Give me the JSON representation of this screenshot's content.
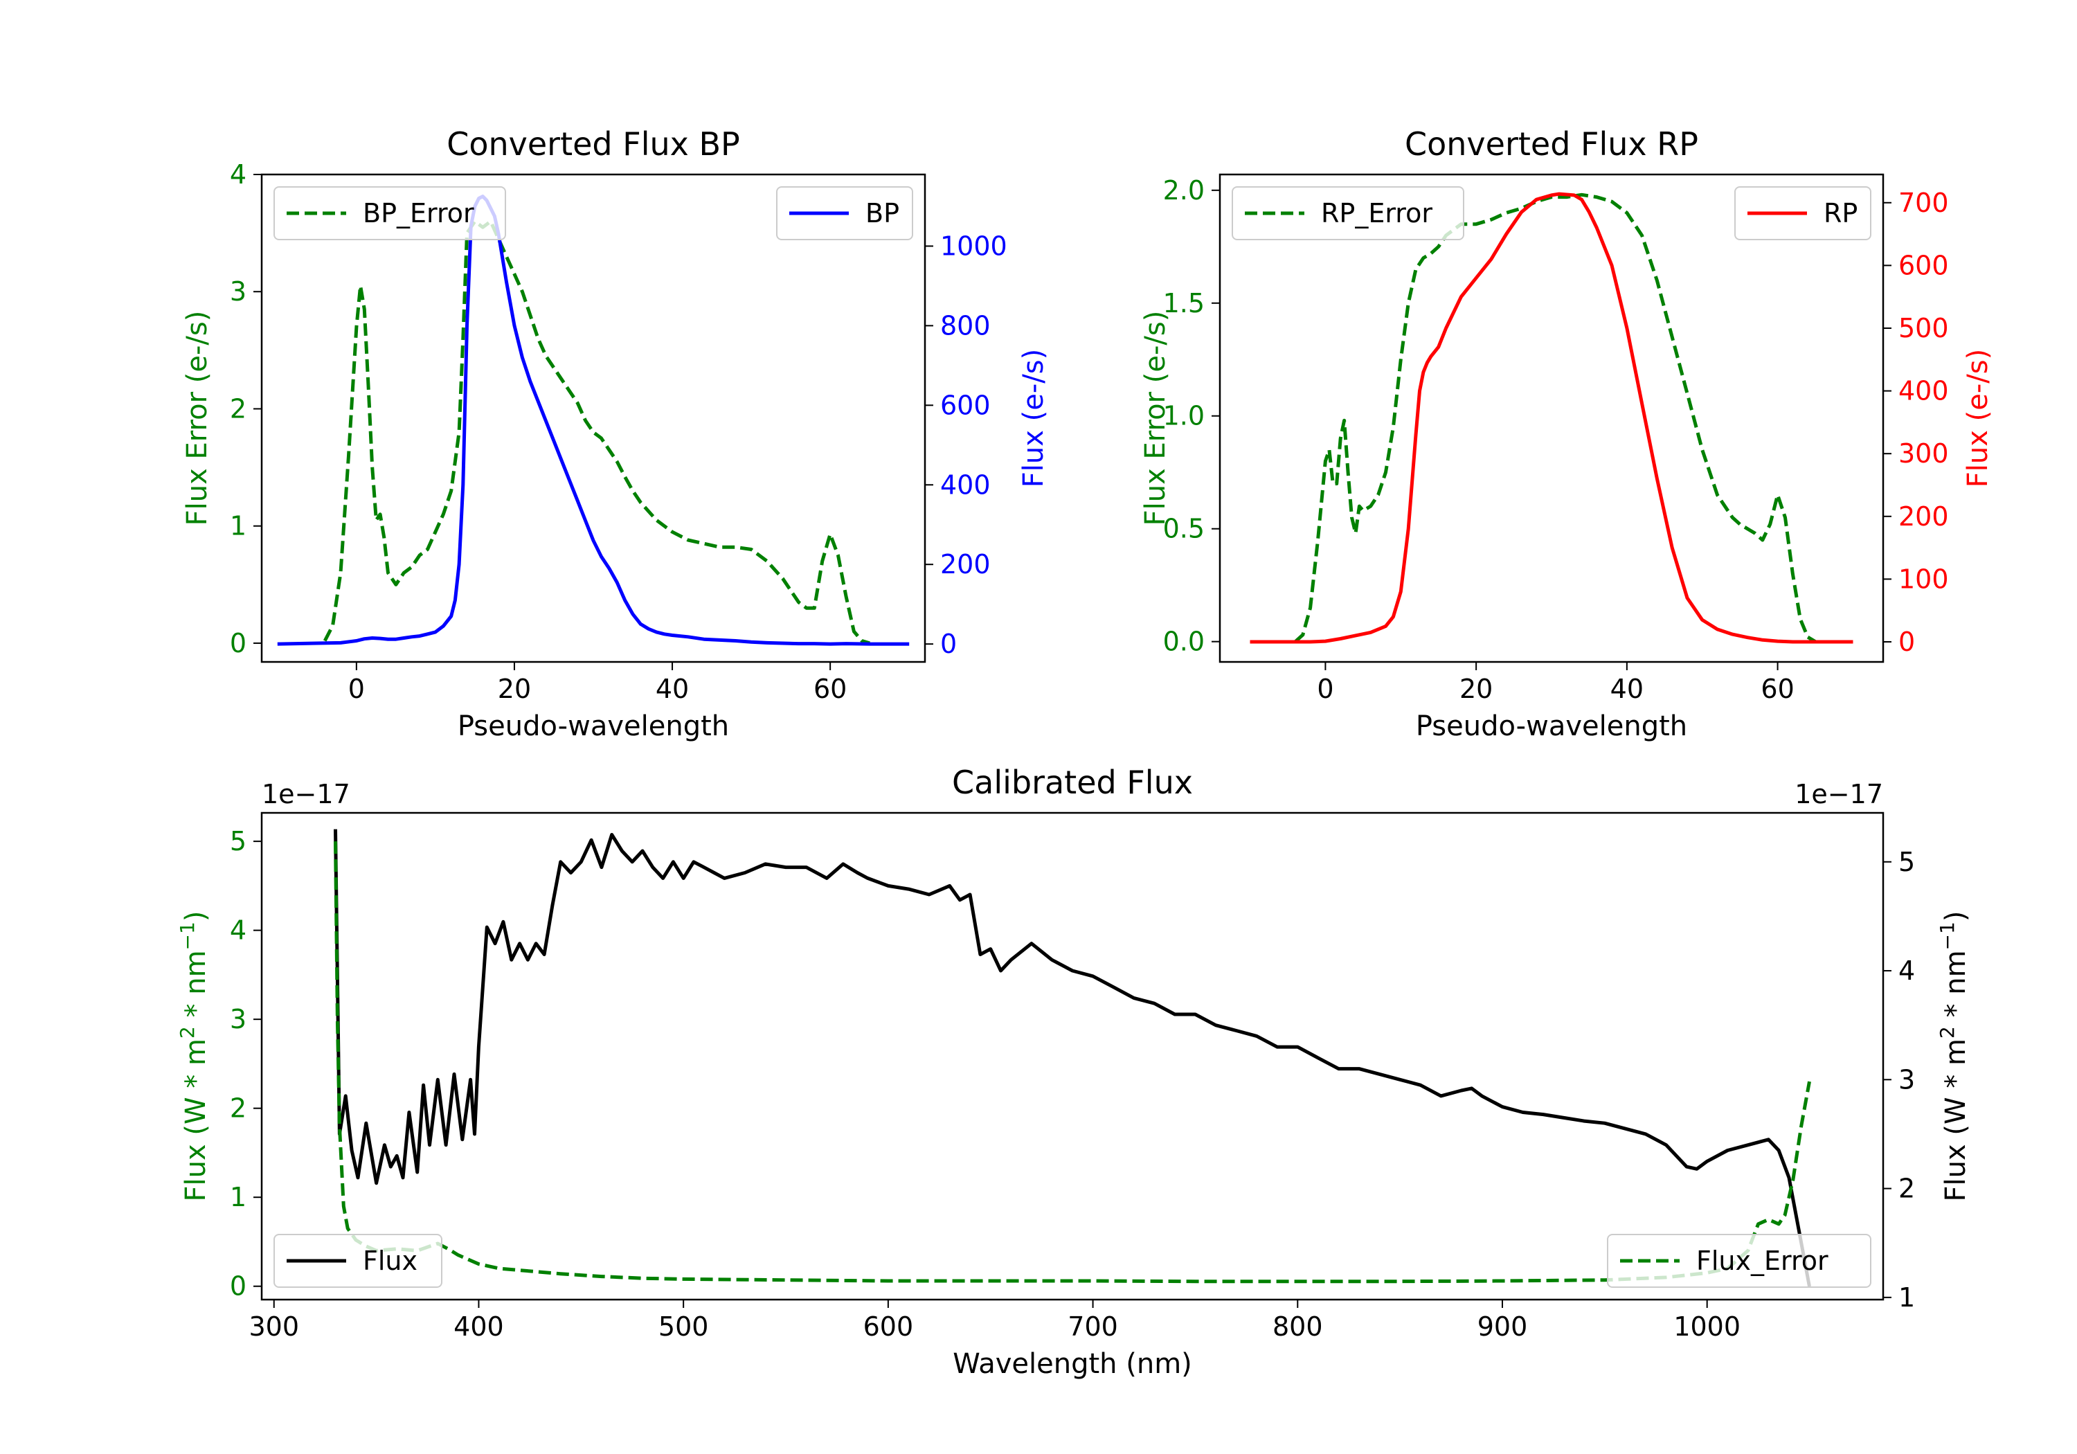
{
  "chart_data": [
    {
      "id": "bp",
      "type": "line",
      "title": "Converted Flux BP",
      "xlabel": "Pseudo-wavelength",
      "xlim": [
        -12,
        72
      ],
      "xticks": [
        0,
        20,
        40,
        60
      ],
      "left_axis": {
        "label": "Flux Error (e-/s)",
        "color": "#008000",
        "ylim": [
          -0.16,
          4.0
        ],
        "ticks": [
          0,
          1,
          2,
          3,
          4
        ],
        "tick_labels": [
          "0",
          "1",
          "2",
          "3",
          "4"
        ]
      },
      "right_axis": {
        "label": "Flux (e-/s)",
        "color": "#0000ff",
        "ylim": [
          -45,
          1180
        ],
        "ticks": [
          0,
          200,
          400,
          600,
          800,
          1000
        ],
        "tick_labels": [
          "0",
          "200",
          "400",
          "600",
          "800",
          "1000"
        ]
      },
      "series": [
        {
          "name": "BP_Error",
          "axis": "left",
          "color": "#008000",
          "dashed": true,
          "x": [
            -4,
            -3,
            -2,
            -1,
            0,
            0.5,
            1,
            1.5,
            2,
            2.5,
            3,
            3.5,
            4,
            5,
            6,
            7,
            8,
            9,
            10,
            11,
            12,
            13,
            13.5,
            14,
            15,
            16,
            17,
            18,
            19,
            20,
            21,
            22,
            23,
            24,
            25,
            26,
            27,
            28,
            29,
            30,
            31,
            32,
            33,
            34,
            35,
            36,
            38,
            40,
            42,
            44,
            46,
            48,
            50,
            52,
            54,
            55,
            56,
            57,
            58,
            59,
            60,
            61,
            62,
            63,
            64,
            65
          ],
          "values": [
            0.02,
            0.15,
            0.6,
            1.6,
            2.7,
            3.05,
            2.85,
            2.2,
            1.5,
            1.05,
            1.1,
            0.9,
            0.6,
            0.5,
            0.6,
            0.65,
            0.75,
            0.8,
            0.95,
            1.1,
            1.3,
            1.8,
            2.6,
            3.5,
            3.6,
            3.55,
            3.6,
            3.45,
            3.3,
            3.15,
            3.0,
            2.8,
            2.6,
            2.45,
            2.35,
            2.25,
            2.15,
            2.05,
            1.9,
            1.8,
            1.75,
            1.65,
            1.55,
            1.42,
            1.3,
            1.2,
            1.05,
            0.95,
            0.88,
            0.85,
            0.82,
            0.82,
            0.8,
            0.7,
            0.55,
            0.45,
            0.35,
            0.3,
            0.3,
            0.7,
            0.93,
            0.75,
            0.4,
            0.1,
            0.02,
            0.0
          ]
        },
        {
          "name": "BP",
          "axis": "right",
          "color": "#0000ff",
          "dashed": false,
          "x": [
            -10,
            -5,
            -2,
            0,
            1,
            2,
            3,
            4,
            5,
            6,
            7,
            8,
            9,
            10,
            11,
            12,
            12.5,
            13,
            13.5,
            14,
            14.5,
            15,
            15.5,
            16,
            16.5,
            17,
            17.5,
            18,
            19,
            20,
            21,
            22,
            23,
            24,
            25,
            26,
            27,
            28,
            29,
            30,
            31,
            32,
            33,
            34,
            35,
            36,
            37,
            38,
            39,
            40,
            42,
            44,
            46,
            48,
            50,
            52,
            54,
            56,
            58,
            60,
            62,
            65,
            70
          ],
          "values": [
            0,
            2,
            3,
            8,
            13,
            15,
            14,
            12,
            12,
            15,
            18,
            20,
            25,
            30,
            45,
            70,
            110,
            200,
            400,
            800,
            1050,
            1100,
            1120,
            1125,
            1115,
            1095,
            1075,
            1030,
            910,
            800,
            720,
            660,
            610,
            560,
            510,
            460,
            410,
            360,
            310,
            260,
            220,
            190,
            155,
            110,
            75,
            50,
            38,
            30,
            25,
            22,
            18,
            12,
            10,
            8,
            5,
            3,
            2,
            1,
            1,
            0,
            1,
            0,
            0
          ]
        }
      ],
      "legends": [
        {
          "labels": [
            "BP_Error"
          ],
          "loc": "upper left"
        },
        {
          "labels": [
            "BP"
          ],
          "loc": "upper right"
        }
      ]
    },
    {
      "id": "rp",
      "type": "line",
      "title": "Converted Flux RP",
      "xlabel": "Pseudo-wavelength",
      "xlim": [
        -14,
        74
      ],
      "xticks": [
        0,
        20,
        40,
        60
      ],
      "left_axis": {
        "label": "Flux Error (e-/s)",
        "color": "#008000",
        "ylim": [
          -0.09,
          2.07
        ],
        "ticks": [
          0.0,
          0.5,
          1.0,
          1.5,
          2.0
        ],
        "tick_labels": [
          "0.0",
          "0.5",
          "1.0",
          "1.5",
          "2.0"
        ]
      },
      "right_axis": {
        "label": "Flux (e-/s)",
        "color": "#ff0000",
        "ylim": [
          -32,
          745
        ],
        "ticks": [
          0,
          100,
          200,
          300,
          400,
          500,
          600,
          700
        ],
        "tick_labels": [
          "0",
          "100",
          "200",
          "300",
          "400",
          "500",
          "600",
          "700"
        ]
      },
      "series": [
        {
          "name": "RP_Error",
          "axis": "left",
          "color": "#008000",
          "dashed": true,
          "x": [
            -4,
            -3,
            -2,
            -1,
            0,
            0.5,
            1,
            1.5,
            2,
            2.5,
            3,
            3.5,
            4,
            4.5,
            5,
            6,
            7,
            8,
            9,
            10,
            11,
            12,
            13,
            14,
            15,
            16,
            18,
            20,
            22,
            24,
            26,
            28,
            30,
            32,
            34,
            36,
            38,
            40,
            42,
            44,
            46,
            48,
            50,
            52,
            54,
            55,
            56,
            57,
            58,
            59,
            60,
            61,
            62,
            63,
            64,
            65
          ],
          "values": [
            0.0,
            0.03,
            0.15,
            0.45,
            0.8,
            0.85,
            0.7,
            0.7,
            0.9,
            0.98,
            0.75,
            0.55,
            0.48,
            0.6,
            0.58,
            0.6,
            0.65,
            0.75,
            0.95,
            1.25,
            1.5,
            1.65,
            1.7,
            1.72,
            1.75,
            1.8,
            1.85,
            1.85,
            1.87,
            1.9,
            1.92,
            1.95,
            1.97,
            1.97,
            1.98,
            1.97,
            1.95,
            1.9,
            1.8,
            1.6,
            1.35,
            1.1,
            0.85,
            0.65,
            0.55,
            0.52,
            0.5,
            0.48,
            0.45,
            0.52,
            0.65,
            0.55,
            0.3,
            0.1,
            0.02,
            0.0
          ]
        },
        {
          "name": "RP",
          "axis": "right",
          "color": "#ff0000",
          "dashed": false,
          "x": [
            -10,
            -5,
            -2,
            0,
            2,
            4,
            6,
            8,
            9,
            10,
            11,
            12,
            12.5,
            13,
            13.5,
            14,
            15,
            16,
            17,
            18,
            20,
            22,
            24,
            26,
            28,
            30,
            31,
            32,
            33,
            34,
            35,
            36,
            38,
            40,
            42,
            44,
            46,
            48,
            50,
            52,
            54,
            56,
            58,
            60,
            62,
            65,
            70
          ],
          "values": [
            0,
            0,
            0,
            1,
            5,
            10,
            15,
            25,
            40,
            80,
            180,
            330,
            400,
            430,
            445,
            455,
            470,
            500,
            525,
            550,
            580,
            610,
            650,
            685,
            705,
            712,
            714,
            713,
            712,
            705,
            685,
            660,
            600,
            500,
            380,
            260,
            150,
            70,
            35,
            20,
            12,
            7,
            3,
            1,
            0,
            0,
            0
          ]
        }
      ],
      "legends": [
        {
          "labels": [
            "RP_Error"
          ],
          "loc": "upper left"
        },
        {
          "labels": [
            "RP"
          ],
          "loc": "upper right"
        }
      ]
    },
    {
      "id": "cal",
      "type": "line",
      "title": "Calibrated Flux",
      "xlabel": "Wavelength (nm)",
      "xlim": [
        294,
        1086
      ],
      "xticks": [
        300,
        400,
        500,
        600,
        700,
        800,
        900,
        1000
      ],
      "left_axis": {
        "label": "Flux (W * m2 * nm−1)",
        "color": "#008000",
        "offset": "1e−17",
        "ylim": [
          -0.15,
          5.32
        ],
        "ticks": [
          0,
          1,
          2,
          3,
          4,
          5
        ],
        "tick_labels": [
          "0",
          "1",
          "2",
          "3",
          "4",
          "5"
        ]
      },
      "right_axis": {
        "label": "Flux (W * m2 * nm−1)",
        "color": "#000000",
        "offset": "1e−17",
        "ylim": [
          0.98,
          5.45
        ],
        "ticks": [
          1,
          2,
          3,
          4,
          5
        ],
        "tick_labels": [
          "1",
          "2",
          "3",
          "4",
          "5"
        ]
      },
      "series": [
        {
          "name": "Flux",
          "axis": "right",
          "color": "#000000",
          "dashed": false,
          "x": [
            330,
            332,
            335,
            338,
            341,
            345,
            350,
            354,
            357,
            360,
            363,
            366,
            370,
            373,
            376,
            380,
            384,
            388,
            392,
            396,
            398,
            400,
            404,
            408,
            412,
            416,
            420,
            424,
            428,
            432,
            436,
            440,
            445,
            450,
            455,
            460,
            465,
            470,
            475,
            480,
            485,
            490,
            495,
            500,
            505,
            510,
            515,
            520,
            530,
            540,
            550,
            560,
            570,
            578,
            585,
            590,
            600,
            610,
            620,
            630,
            635,
            640,
            645,
            650,
            655,
            660,
            670,
            680,
            690,
            700,
            710,
            720,
            730,
            740,
            750,
            760,
            770,
            780,
            790,
            800,
            810,
            820,
            830,
            840,
            850,
            860,
            870,
            880,
            885,
            890,
            900,
            910,
            920,
            930,
            940,
            950,
            960,
            970,
            980,
            990,
            995,
            1000,
            1010,
            1020,
            1030,
            1035,
            1040,
            1045,
            1050
          ],
          "values": [
            5.3,
            2.5,
            2.85,
            2.35,
            2.1,
            2.6,
            2.05,
            2.4,
            2.2,
            2.3,
            2.1,
            2.7,
            2.15,
            2.95,
            2.4,
            3.0,
            2.4,
            3.05,
            2.45,
            3.0,
            2.5,
            3.3,
            4.4,
            4.25,
            4.45,
            4.1,
            4.25,
            4.1,
            4.25,
            4.15,
            4.6,
            5.0,
            4.9,
            5.0,
            5.2,
            4.95,
            5.25,
            5.1,
            5.0,
            5.1,
            4.95,
            4.85,
            5.0,
            4.85,
            5.0,
            4.95,
            4.9,
            4.85,
            4.9,
            4.98,
            4.95,
            4.95,
            4.85,
            4.98,
            4.9,
            4.85,
            4.78,
            4.75,
            4.7,
            4.78,
            4.65,
            4.7,
            4.15,
            4.2,
            4.0,
            4.1,
            4.25,
            4.1,
            4.0,
            3.95,
            3.85,
            3.75,
            3.7,
            3.6,
            3.6,
            3.5,
            3.45,
            3.4,
            3.3,
            3.3,
            3.2,
            3.1,
            3.1,
            3.05,
            3.0,
            2.95,
            2.85,
            2.9,
            2.92,
            2.85,
            2.75,
            2.7,
            2.68,
            2.65,
            2.62,
            2.6,
            2.55,
            2.5,
            2.4,
            2.2,
            2.18,
            2.25,
            2.35,
            2.4,
            2.45,
            2.35,
            2.1,
            1.6,
            1.1
          ]
        },
        {
          "name": "Flux_Error",
          "axis": "left",
          "color": "#008000",
          "dashed": true,
          "x": [
            330,
            331,
            332,
            334,
            336,
            340,
            345,
            350,
            360,
            370,
            380,
            385,
            390,
            395,
            400,
            410,
            420,
            440,
            460,
            480,
            500,
            550,
            600,
            650,
            700,
            750,
            800,
            850,
            900,
            950,
            980,
            1000,
            1010,
            1020,
            1025,
            1030,
            1035,
            1038,
            1042,
            1046,
            1050
          ],
          "values": [
            5.0,
            3.0,
            1.8,
            0.9,
            0.65,
            0.52,
            0.45,
            0.4,
            0.42,
            0.4,
            0.48,
            0.42,
            0.35,
            0.3,
            0.25,
            0.2,
            0.18,
            0.14,
            0.11,
            0.09,
            0.08,
            0.07,
            0.06,
            0.06,
            0.06,
            0.055,
            0.055,
            0.055,
            0.06,
            0.07,
            0.1,
            0.15,
            0.2,
            0.4,
            0.7,
            0.75,
            0.7,
            0.8,
            1.2,
            1.8,
            2.3
          ]
        }
      ],
      "legends": [
        {
          "labels": [
            "Flux"
          ],
          "loc": "lower left"
        },
        {
          "labels": [
            "Flux_Error"
          ],
          "loc": "lower right"
        }
      ]
    }
  ]
}
